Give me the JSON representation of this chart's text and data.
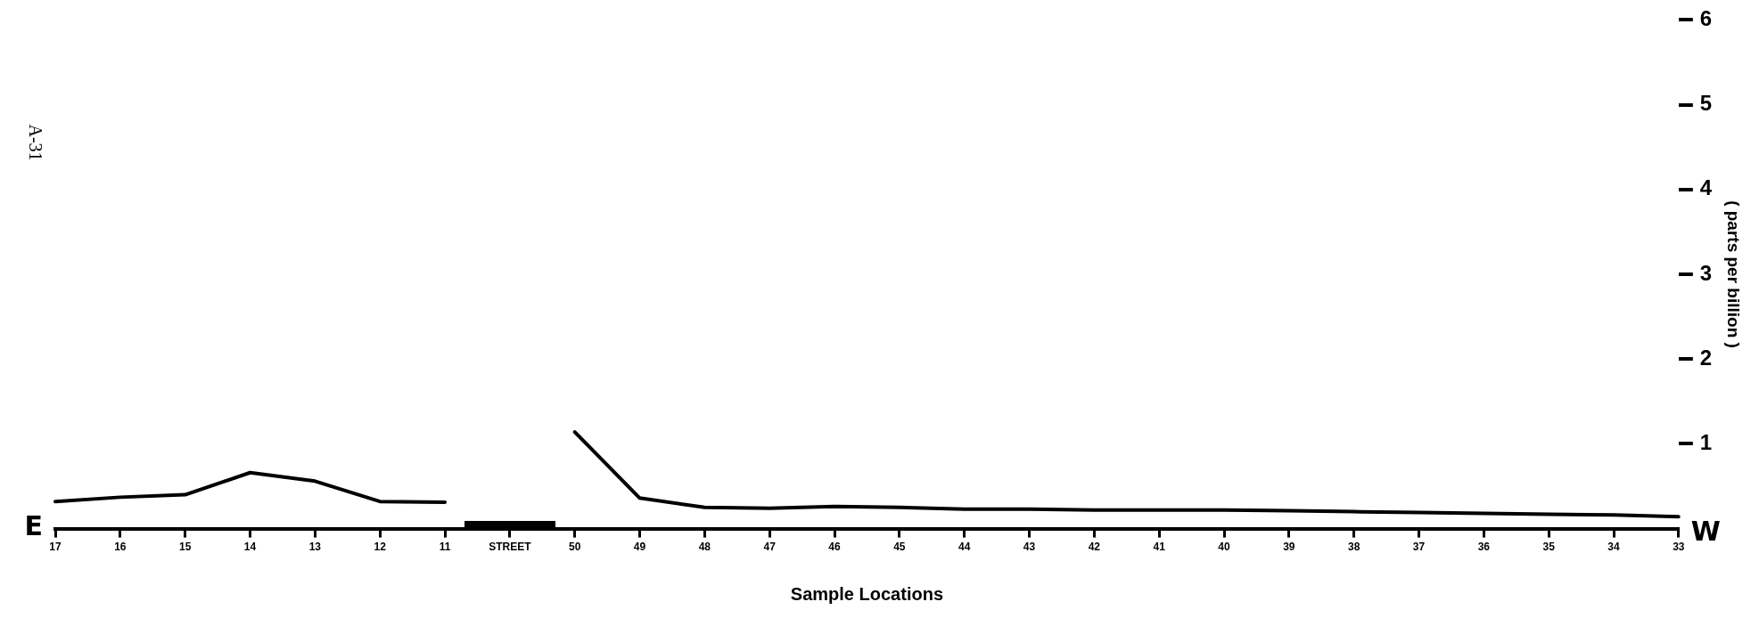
{
  "chart_data": {
    "type": "line",
    "xlabel": "Sample Locations",
    "ylabel": "( parts per billion )",
    "categories": [
      "17",
      "16",
      "15",
      "14",
      "13",
      "12",
      "11",
      "STREET",
      "50",
      "49",
      "48",
      "47",
      "46",
      "45",
      "44",
      "43",
      "42",
      "41",
      "40",
      "39",
      "38",
      "37",
      "36",
      "35",
      "34",
      "33"
    ],
    "series": [
      {
        "color": "#000000",
        "values": [
          0.32,
          0.37,
          0.4,
          0.66,
          0.56,
          0.32,
          0.31,
          null,
          1.14,
          0.36,
          0.25,
          0.24,
          0.26,
          0.25,
          0.23,
          0.23,
          0.22,
          0.22,
          0.22,
          0.21,
          0.2,
          0.19,
          0.18,
          0.17,
          0.16,
          0.14
        ]
      }
    ],
    "ylim": [
      0,
      6
    ],
    "yticks": [
      1,
      2,
      3,
      4,
      5,
      6
    ],
    "grid": false,
    "legend": false,
    "marker": "none",
    "line_style": "solid",
    "annotations": [
      "A-31",
      "E",
      "W"
    ]
  }
}
